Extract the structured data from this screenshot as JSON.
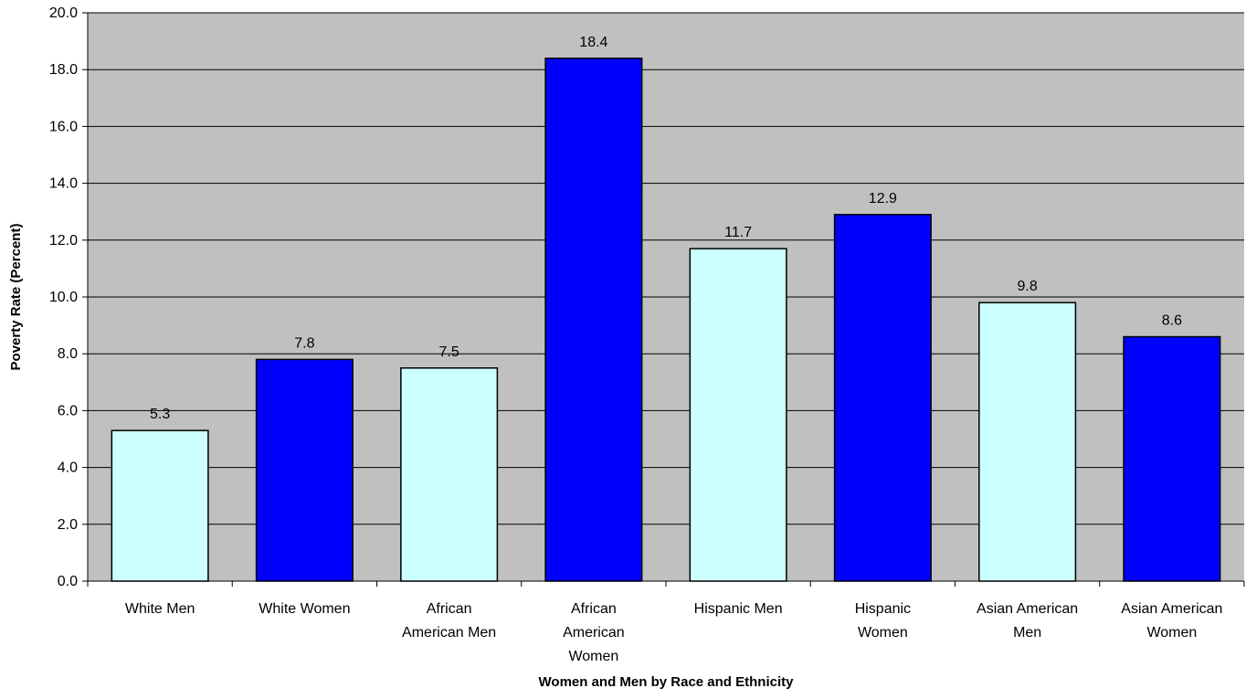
{
  "chart_data": {
    "type": "bar",
    "title": "",
    "xlabel": "Women and Men by Race and Ethnicity",
    "ylabel": "Poverty Rate (Percent)",
    "ylim": [
      0,
      20
    ],
    "ytick_step": 2,
    "ytick_labels": [
      "0.0",
      "2.0",
      "4.0",
      "6.0",
      "8.0",
      "10.0",
      "12.0",
      "14.0",
      "16.0",
      "18.0",
      "20.0"
    ],
    "grid": true,
    "legend": "none",
    "categories": [
      [
        "White Men"
      ],
      [
        "White Women"
      ],
      [
        "African",
        "American Men"
      ],
      [
        "African",
        "American",
        "Women"
      ],
      [
        "Hispanic Men"
      ],
      [
        "Hispanic",
        "Women"
      ],
      [
        "Asian American",
        "Men"
      ],
      [
        "Asian American",
        "Women"
      ]
    ],
    "values": [
      5.3,
      7.8,
      7.5,
      18.4,
      11.7,
      12.9,
      9.8,
      8.6
    ],
    "data_labels": [
      "5.3",
      "7.8",
      "7.5",
      "18.4",
      "11.7",
      "12.9",
      "9.8",
      "8.6"
    ],
    "colors": {
      "plot_background": "#C0C0C0",
      "men_bar": "#CCFFFF",
      "women_bar": "#0000FF",
      "gridline": "#000000",
      "bar_outline": "#000000"
    },
    "bar_color_by_category": [
      "men_bar",
      "women_bar",
      "men_bar",
      "women_bar",
      "men_bar",
      "women_bar",
      "men_bar",
      "women_bar"
    ]
  }
}
